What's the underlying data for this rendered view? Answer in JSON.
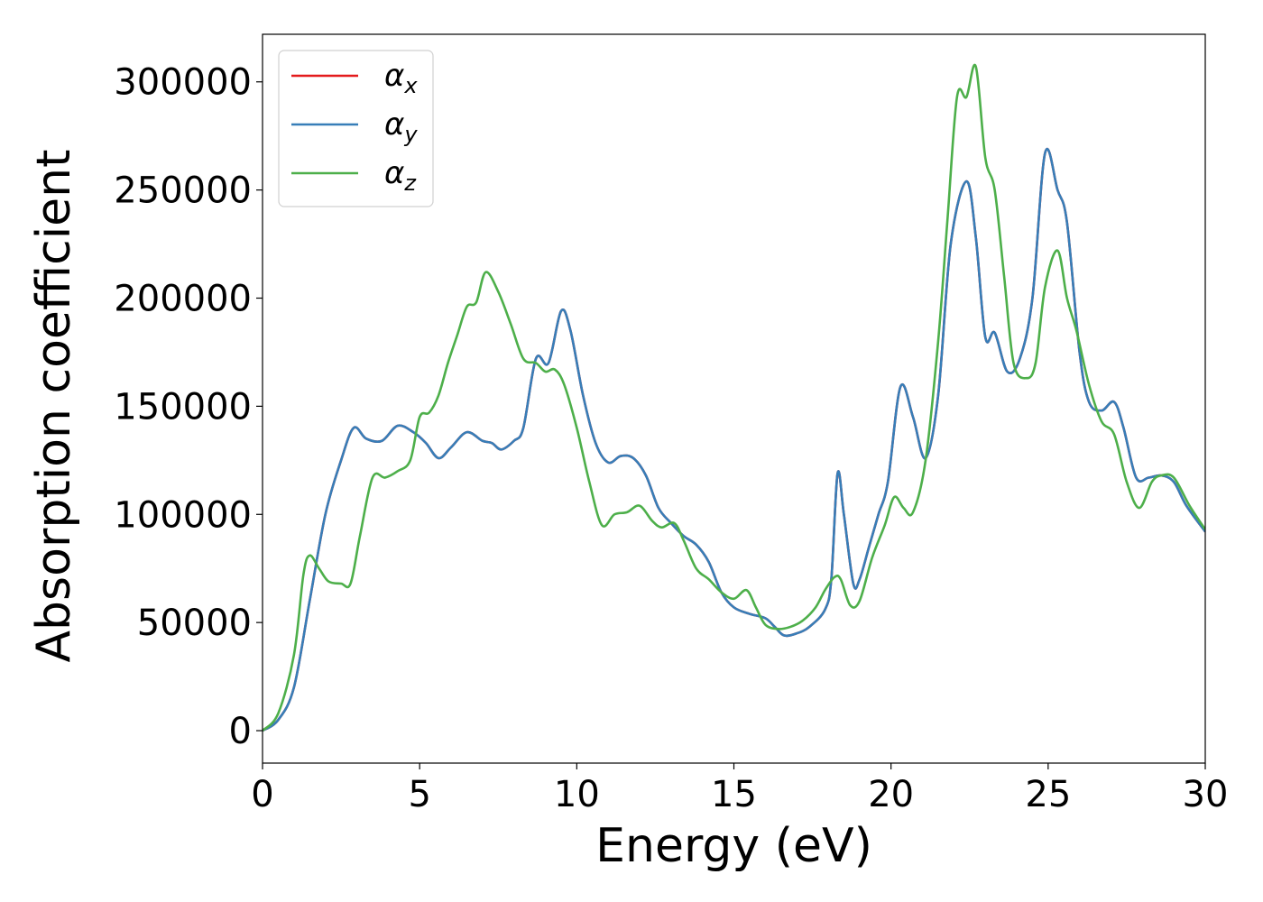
{
  "chart_data": {
    "type": "line",
    "title": "",
    "xlabel": "Energy (eV)",
    "ylabel": "Absorption coefficient",
    "xlim": [
      0,
      30
    ],
    "ylim": [
      -15000,
      322000
    ],
    "xticks": [
      0,
      5,
      10,
      15,
      20,
      25,
      30
    ],
    "yticks": [
      0,
      50000,
      100000,
      150000,
      200000,
      250000,
      300000
    ],
    "grid": false,
    "legend_position": "top-left",
    "series": [
      {
        "name": "α",
        "subscript": "x",
        "color": "#e41a1c",
        "points": [
          [
            0,
            0
          ],
          [
            0.5,
            5000
          ],
          [
            1,
            20000
          ],
          [
            1.5,
            60000
          ],
          [
            2,
            100000
          ],
          [
            2.5,
            125000
          ],
          [
            2.9,
            140000
          ],
          [
            3.3,
            135000
          ],
          [
            3.8,
            134000
          ],
          [
            4.3,
            141000
          ],
          [
            4.8,
            138000
          ],
          [
            5.2,
            133000
          ],
          [
            5.6,
            126000
          ],
          [
            6,
            131000
          ],
          [
            6.5,
            138000
          ],
          [
            7,
            134000
          ],
          [
            7.3,
            133000
          ],
          [
            7.6,
            130000
          ],
          [
            8,
            134000
          ],
          [
            8.3,
            140000
          ],
          [
            8.7,
            172000
          ],
          [
            9.1,
            170000
          ],
          [
            9.5,
            194000
          ],
          [
            9.8,
            185000
          ],
          [
            10.2,
            155000
          ],
          [
            10.6,
            133000
          ],
          [
            11,
            124000
          ],
          [
            11.4,
            127000
          ],
          [
            11.8,
            126000
          ],
          [
            12.2,
            118000
          ],
          [
            12.6,
            103000
          ],
          [
            13,
            96000
          ],
          [
            13.4,
            90000
          ],
          [
            13.8,
            86000
          ],
          [
            14.2,
            78000
          ],
          [
            14.6,
            64000
          ],
          [
            15,
            57000
          ],
          [
            15.5,
            54000
          ],
          [
            16,
            52000
          ],
          [
            16.3,
            48000
          ],
          [
            16.6,
            44000
          ],
          [
            17,
            45000
          ],
          [
            17.4,
            48000
          ],
          [
            17.9,
            56000
          ],
          [
            18.1,
            70000
          ],
          [
            18.3,
            119000
          ],
          [
            18.5,
            100000
          ],
          [
            18.8,
            68000
          ],
          [
            19,
            70000
          ],
          [
            19.3,
            85000
          ],
          [
            19.6,
            100000
          ],
          [
            19.9,
            115000
          ],
          [
            20.3,
            159000
          ],
          [
            20.7,
            145000
          ],
          [
            21.1,
            126000
          ],
          [
            21.5,
            155000
          ],
          [
            21.9,
            225000
          ],
          [
            22.4,
            254000
          ],
          [
            22.7,
            228000
          ],
          [
            23,
            182000
          ],
          [
            23.3,
            184000
          ],
          [
            23.7,
            166000
          ],
          [
            24.1,
            172000
          ],
          [
            24.5,
            200000
          ],
          [
            24.9,
            267000
          ],
          [
            25.3,
            250000
          ],
          [
            25.6,
            235000
          ],
          [
            26,
            175000
          ],
          [
            26.3,
            152000
          ],
          [
            26.7,
            148000
          ],
          [
            27.1,
            152000
          ],
          [
            27.4,
            140000
          ],
          [
            27.8,
            117000
          ],
          [
            28.2,
            117000
          ],
          [
            28.6,
            118000
          ],
          [
            29,
            115000
          ],
          [
            29.4,
            104000
          ],
          [
            30,
            92000
          ]
        ]
      },
      {
        "name": "α",
        "subscript": "y",
        "color": "#377eb8",
        "points": [
          [
            0,
            0
          ],
          [
            0.5,
            5000
          ],
          [
            1,
            20000
          ],
          [
            1.5,
            60000
          ],
          [
            2,
            100000
          ],
          [
            2.5,
            125000
          ],
          [
            2.9,
            140000
          ],
          [
            3.3,
            135000
          ],
          [
            3.8,
            134000
          ],
          [
            4.3,
            141000
          ],
          [
            4.8,
            138000
          ],
          [
            5.2,
            133000
          ],
          [
            5.6,
            126000
          ],
          [
            6,
            131000
          ],
          [
            6.5,
            138000
          ],
          [
            7,
            134000
          ],
          [
            7.3,
            133000
          ],
          [
            7.6,
            130000
          ],
          [
            8,
            134000
          ],
          [
            8.3,
            140000
          ],
          [
            8.7,
            172000
          ],
          [
            9.1,
            170000
          ],
          [
            9.5,
            194000
          ],
          [
            9.8,
            185000
          ],
          [
            10.2,
            155000
          ],
          [
            10.6,
            133000
          ],
          [
            11,
            124000
          ],
          [
            11.4,
            127000
          ],
          [
            11.8,
            126000
          ],
          [
            12.2,
            118000
          ],
          [
            12.6,
            103000
          ],
          [
            13,
            96000
          ],
          [
            13.4,
            90000
          ],
          [
            13.8,
            86000
          ],
          [
            14.2,
            78000
          ],
          [
            14.6,
            64000
          ],
          [
            15,
            57000
          ],
          [
            15.5,
            54000
          ],
          [
            16,
            52000
          ],
          [
            16.3,
            48000
          ],
          [
            16.6,
            44000
          ],
          [
            17,
            45000
          ],
          [
            17.4,
            48000
          ],
          [
            17.9,
            56000
          ],
          [
            18.1,
            70000
          ],
          [
            18.3,
            119000
          ],
          [
            18.5,
            100000
          ],
          [
            18.8,
            68000
          ],
          [
            19,
            70000
          ],
          [
            19.3,
            85000
          ],
          [
            19.6,
            100000
          ],
          [
            19.9,
            115000
          ],
          [
            20.3,
            159000
          ],
          [
            20.7,
            145000
          ],
          [
            21.1,
            126000
          ],
          [
            21.5,
            155000
          ],
          [
            21.9,
            225000
          ],
          [
            22.4,
            254000
          ],
          [
            22.7,
            228000
          ],
          [
            23,
            182000
          ],
          [
            23.3,
            184000
          ],
          [
            23.7,
            166000
          ],
          [
            24.1,
            172000
          ],
          [
            24.5,
            200000
          ],
          [
            24.9,
            267000
          ],
          [
            25.3,
            250000
          ],
          [
            25.6,
            235000
          ],
          [
            26,
            175000
          ],
          [
            26.3,
            152000
          ],
          [
            26.7,
            148000
          ],
          [
            27.1,
            152000
          ],
          [
            27.4,
            140000
          ],
          [
            27.8,
            117000
          ],
          [
            28.2,
            117000
          ],
          [
            28.6,
            118000
          ],
          [
            29,
            115000
          ],
          [
            29.4,
            104000
          ],
          [
            30,
            92000
          ]
        ]
      },
      {
        "name": "α",
        "subscript": "z",
        "color": "#4daf4a",
        "points": [
          [
            0,
            0
          ],
          [
            0.5,
            8000
          ],
          [
            1,
            35000
          ],
          [
            1.3,
            72000
          ],
          [
            1.5,
            81000
          ],
          [
            1.8,
            75000
          ],
          [
            2.1,
            69000
          ],
          [
            2.5,
            68000
          ],
          [
            2.8,
            68000
          ],
          [
            3.1,
            90000
          ],
          [
            3.5,
            117000
          ],
          [
            3.9,
            117000
          ],
          [
            4.3,
            120000
          ],
          [
            4.7,
            125000
          ],
          [
            5,
            145000
          ],
          [
            5.3,
            147000
          ],
          [
            5.6,
            155000
          ],
          [
            5.9,
            170000
          ],
          [
            6.2,
            183000
          ],
          [
            6.5,
            196000
          ],
          [
            6.8,
            198000
          ],
          [
            7.1,
            212000
          ],
          [
            7.5,
            203000
          ],
          [
            7.9,
            188000
          ],
          [
            8.3,
            172000
          ],
          [
            8.7,
            170000
          ],
          [
            9,
            166000
          ],
          [
            9.3,
            167000
          ],
          [
            9.6,
            160000
          ],
          [
            10,
            140000
          ],
          [
            10.4,
            115000
          ],
          [
            10.8,
            95000
          ],
          [
            11.2,
            100000
          ],
          [
            11.6,
            101000
          ],
          [
            12,
            104000
          ],
          [
            12.4,
            97000
          ],
          [
            12.7,
            94000
          ],
          [
            13.1,
            96000
          ],
          [
            13.4,
            88000
          ],
          [
            13.8,
            75000
          ],
          [
            14.2,
            70000
          ],
          [
            14.6,
            64000
          ],
          [
            15,
            61000
          ],
          [
            15.4,
            65000
          ],
          [
            15.7,
            57000
          ],
          [
            16,
            49000
          ],
          [
            16.4,
            47000
          ],
          [
            16.8,
            48000
          ],
          [
            17.2,
            51000
          ],
          [
            17.6,
            57000
          ],
          [
            17.9,
            65000
          ],
          [
            18.2,
            71000
          ],
          [
            18.4,
            70000
          ],
          [
            18.7,
            58000
          ],
          [
            19,
            60000
          ],
          [
            19.4,
            80000
          ],
          [
            19.8,
            95000
          ],
          [
            20.1,
            108000
          ],
          [
            20.4,
            103000
          ],
          [
            20.7,
            101000
          ],
          [
            21.1,
            125000
          ],
          [
            21.5,
            180000
          ],
          [
            21.8,
            237000
          ],
          [
            22.1,
            293000
          ],
          [
            22.4,
            293000
          ],
          [
            22.7,
            307000
          ],
          [
            23,
            265000
          ],
          [
            23.3,
            250000
          ],
          [
            23.6,
            210000
          ],
          [
            23.9,
            170000
          ],
          [
            24.3,
            163000
          ],
          [
            24.6,
            170000
          ],
          [
            24.9,
            205000
          ],
          [
            25.3,
            222000
          ],
          [
            25.6,
            200000
          ],
          [
            25.9,
            185000
          ],
          [
            26.3,
            160000
          ],
          [
            26.7,
            143000
          ],
          [
            27.1,
            137000
          ],
          [
            27.5,
            115000
          ],
          [
            27.9,
            103000
          ],
          [
            28.3,
            115000
          ],
          [
            28.6,
            118000
          ],
          [
            29,
            117000
          ],
          [
            29.5,
            104000
          ],
          [
            30,
            93000
          ]
        ]
      }
    ]
  }
}
